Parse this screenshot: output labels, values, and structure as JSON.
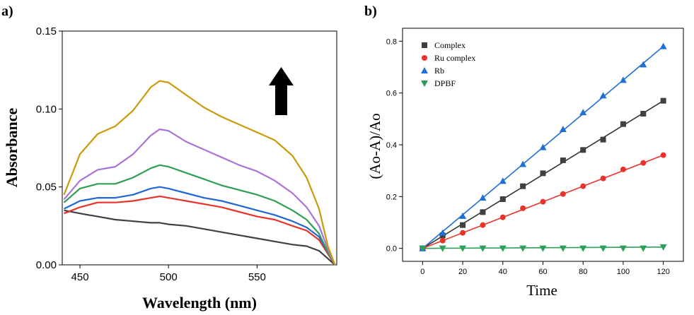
{
  "panels": {
    "a": "a)",
    "b": "b)"
  },
  "chart_data": [
    {
      "type": "line",
      "xlabel": "Wavelength (nm)",
      "ylabel": "Absorbance",
      "xlim": [
        440,
        595
      ],
      "ylim": [
        0,
        0.15
      ],
      "xticks": [
        450,
        500,
        550
      ],
      "yticks": [
        0.0,
        0.05,
        0.1,
        0.15
      ],
      "ytick_labels": [
        "0.00",
        "0.05",
        "0.10",
        "0.15"
      ],
      "grid": false,
      "annotation": "up-arrow",
      "x": [
        441,
        450,
        460,
        470,
        480,
        490,
        495,
        500,
        510,
        520,
        530,
        540,
        550,
        560,
        570,
        578,
        585,
        590,
        594
      ],
      "series": [
        {
          "color": "#404040",
          "values": [
            0.035,
            0.033,
            0.031,
            0.029,
            0.028,
            0.027,
            0.027,
            0.026,
            0.025,
            0.023,
            0.021,
            0.019,
            0.017,
            0.015,
            0.013,
            0.012,
            0.009,
            0.004,
            0.0
          ]
        },
        {
          "color": "#e8322a",
          "values": [
            0.033,
            0.037,
            0.04,
            0.04,
            0.041,
            0.043,
            0.044,
            0.043,
            0.041,
            0.039,
            0.037,
            0.034,
            0.031,
            0.029,
            0.025,
            0.022,
            0.016,
            0.007,
            0.0
          ]
        },
        {
          "color": "#2166d6",
          "values": [
            0.036,
            0.041,
            0.043,
            0.043,
            0.045,
            0.049,
            0.05,
            0.049,
            0.046,
            0.043,
            0.041,
            0.038,
            0.035,
            0.032,
            0.028,
            0.024,
            0.018,
            0.008,
            0.0
          ]
        },
        {
          "color": "#2e9e52",
          "values": [
            0.04,
            0.049,
            0.052,
            0.052,
            0.056,
            0.062,
            0.064,
            0.063,
            0.059,
            0.055,
            0.051,
            0.048,
            0.045,
            0.041,
            0.035,
            0.029,
            0.02,
            0.008,
            0.0
          ]
        },
        {
          "color": "#a874d6",
          "values": [
            0.042,
            0.054,
            0.061,
            0.063,
            0.071,
            0.083,
            0.087,
            0.086,
            0.079,
            0.074,
            0.069,
            0.064,
            0.06,
            0.054,
            0.046,
            0.037,
            0.025,
            0.01,
            0.0
          ]
        },
        {
          "color": "#c99a0a",
          "values": [
            0.045,
            0.071,
            0.084,
            0.089,
            0.099,
            0.114,
            0.118,
            0.117,
            0.109,
            0.101,
            0.095,
            0.09,
            0.085,
            0.08,
            0.07,
            0.056,
            0.036,
            0.012,
            0.0
          ]
        }
      ]
    },
    {
      "type": "scatter",
      "xlabel": "Time",
      "ylabel": "(Ao-A)/Ao",
      "xlim": [
        -10,
        130
      ],
      "ylim": [
        -0.05,
        0.85
      ],
      "xticks": [
        0,
        20,
        40,
        60,
        80,
        100,
        120
      ],
      "yticks": [
        0.0,
        0.2,
        0.4,
        0.6,
        0.8
      ],
      "ytick_labels": [
        "0.0",
        "0.2",
        "0.4",
        "0.6",
        "0.8"
      ],
      "legend_position": "top-left",
      "grid": false,
      "x": [
        0,
        10,
        20,
        30,
        40,
        50,
        60,
        70,
        80,
        90,
        100,
        110,
        120
      ],
      "series": [
        {
          "name": "Complex",
          "marker": "square",
          "color": "#404040",
          "line_color": "#333333",
          "values": [
            0.0,
            0.05,
            0.09,
            0.14,
            0.19,
            0.24,
            0.29,
            0.34,
            0.38,
            0.42,
            0.48,
            0.52,
            0.57
          ]
        },
        {
          "name": "Ru complex",
          "marker": "circle",
          "color": "#e8322a",
          "line_color": "#e8322a",
          "values": [
            0.0,
            0.03,
            0.06,
            0.09,
            0.12,
            0.155,
            0.18,
            0.21,
            0.24,
            0.27,
            0.305,
            0.33,
            0.36
          ]
        },
        {
          "name": "Rb",
          "marker": "triangle-up",
          "color": "#1f6fd6",
          "line_color": "#1f6fd6",
          "values": [
            0.0,
            0.06,
            0.125,
            0.195,
            0.26,
            0.325,
            0.39,
            0.46,
            0.525,
            0.59,
            0.65,
            0.71,
            0.78
          ]
        },
        {
          "name": "DPBF",
          "marker": "triangle-down",
          "color": "#2ca05a",
          "line_color": "#2ca05a",
          "values": [
            0.0,
            0.0,
            0.0,
            0.0,
            0.0,
            0.0,
            0.0,
            0.0,
            0.0,
            0.0,
            0.0,
            0.0,
            0.005
          ]
        }
      ]
    }
  ]
}
